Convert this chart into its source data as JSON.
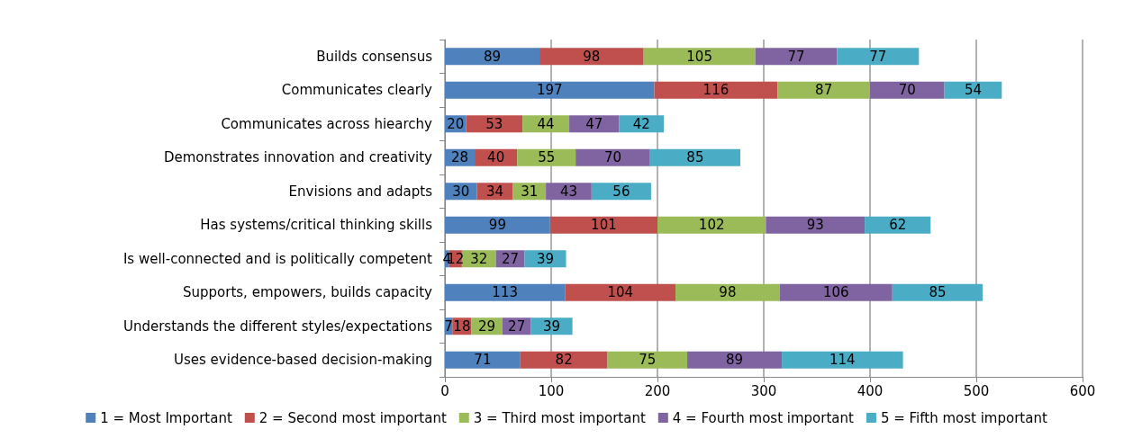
{
  "chart_data": {
    "type": "bar",
    "orientation": "horizontal",
    "stacked": true,
    "categories": [
      "Builds consensus",
      "Communicates clearly",
      "Communicates across hiearchy",
      "Demonstrates innovation and creativity",
      "Envisions and adapts",
      "Has systems/critical thinking skills",
      "Is well-connected and is politically competent",
      "Supports, empowers, builds capacity",
      "Understands the different styles/expectations",
      "Uses evidence-based decision-making"
    ],
    "series": [
      {
        "name": "1 = Most Important",
        "color": "#4f81bd",
        "values": [
          89,
          197,
          20,
          28,
          30,
          99,
          4,
          113,
          7,
          71
        ]
      },
      {
        "name": "2 = Second most important",
        "color": "#c0504d",
        "values": [
          98,
          116,
          53,
          40,
          34,
          101,
          12,
          104,
          18,
          82
        ]
      },
      {
        "name": "3 = Third most important",
        "color": "#9bbb59",
        "values": [
          105,
          87,
          44,
          55,
          31,
          102,
          32,
          98,
          29,
          75
        ]
      },
      {
        "name": "4 = Fourth most important",
        "color": "#8064a2",
        "values": [
          77,
          70,
          47,
          70,
          43,
          93,
          27,
          106,
          27,
          89
        ]
      },
      {
        "name": "5 = Fifth most important",
        "color": "#4bacc6",
        "values": [
          77,
          54,
          42,
          85,
          56,
          62,
          39,
          85,
          39,
          114
        ]
      }
    ],
    "xlim": [
      0,
      600
    ],
    "xticks": [
      0,
      100,
      200,
      300,
      400,
      500,
      600
    ],
    "grid": "x",
    "legend": "bottom",
    "data_labels": true
  }
}
